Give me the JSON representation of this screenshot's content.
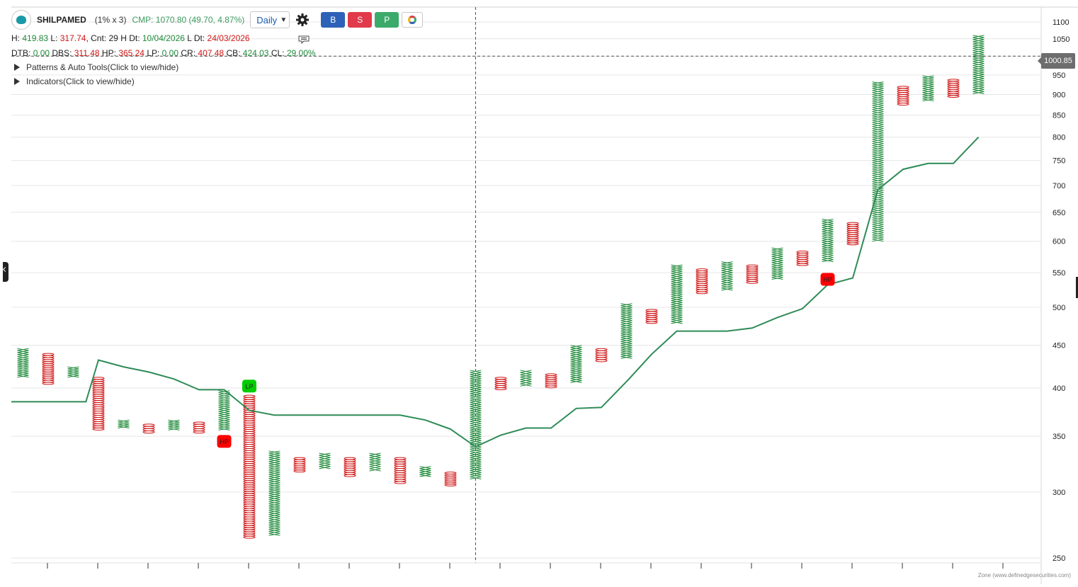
{
  "header": {
    "symbol": "SHILPAMED",
    "box_size": "(1% x 3)",
    "cmp": "CMP: 1070.80 (49.70, 4.87%)",
    "timeframe": "Daily",
    "buttons": {
      "buy": "B",
      "sell": "S",
      "p": "P"
    }
  },
  "stats1": {
    "h_lbl": "H:",
    "h": "419.83",
    "l_lbl": "L:",
    "l": "317.74",
    "cnt_lbl": ", Cnt:",
    "cnt": "29",
    "hdt_lbl": "H Dt:",
    "hdt": "10/04/2026",
    "ldt_lbl": "L Dt:",
    "ldt": "24/03/2026"
  },
  "stats2": {
    "dtb_lbl": "DTB:",
    "dtb": "0.00",
    "dbs_lbl": "DBS:",
    "dbs": "311.48",
    "hp_lbl": "HP:",
    "hp": "365.24",
    "lp_lbl": "LP:",
    "lp": "0.00",
    "cr_lbl": "CR:",
    "cr": "407.48",
    "cb_lbl": "CB:",
    "cb": "424.03",
    "cl_lbl": "CL:",
    "cl": "29.00%"
  },
  "panels": {
    "patterns": "Patterns & Auto Tools(Click to view/hide)",
    "indicators": "Indicators(Click to view/hide)"
  },
  "crosshair_price": "1000.85",
  "footer": "Zone (www.definedgesecurities.com)",
  "colors": {
    "x": "#1f8a3a",
    "o": "#d01616",
    "line": "#2e8b57",
    "grid": "#e6e6e6",
    "lp": "#00cc00",
    "hp": "#ff0000"
  },
  "chart_data": {
    "type": "point-and-figure",
    "y_scale": "log",
    "ylim": [
      250,
      1100
    ],
    "y_ticks": [
      250,
      300,
      350,
      400,
      450,
      500,
      550,
      600,
      650,
      700,
      750,
      800,
      850,
      900,
      950,
      1000,
      1050,
      1100
    ],
    "y_tick_labels": [
      "250",
      "300",
      "350",
      "400",
      "450",
      "500",
      "550",
      "600",
      "650",
      "700",
      "750",
      "800",
      "850",
      "900",
      "950",
      "",
      "1050",
      "1100"
    ],
    "columns": [
      {
        "type": "X",
        "low": 412,
        "high": 446
      },
      {
        "type": "O",
        "low": 404,
        "high": 440
      },
      {
        "type": "X",
        "low": 412,
        "high": 424
      },
      {
        "type": "O",
        "low": 356,
        "high": 412
      },
      {
        "type": "X",
        "low": 358,
        "high": 366
      },
      {
        "type": "O",
        "low": 353,
        "high": 362
      },
      {
        "type": "X",
        "low": 356,
        "high": 366
      },
      {
        "type": "O",
        "low": 353,
        "high": 364
      },
      {
        "type": "X",
        "low": 356,
        "high": 397
      },
      {
        "type": "O",
        "low": 264,
        "high": 392
      },
      {
        "type": "X",
        "low": 266,
        "high": 336
      },
      {
        "type": "O",
        "low": 317,
        "high": 330
      },
      {
        "type": "X",
        "low": 320,
        "high": 334
      },
      {
        "type": "O",
        "low": 313,
        "high": 330
      },
      {
        "type": "X",
        "low": 318,
        "high": 334
      },
      {
        "type": "O",
        "low": 307,
        "high": 330
      },
      {
        "type": "X",
        "low": 313,
        "high": 322
      },
      {
        "type": "O",
        "low": 305,
        "high": 317
      },
      {
        "type": "X",
        "low": 311,
        "high": 420
      },
      {
        "type": "O",
        "low": 398,
        "high": 412
      },
      {
        "type": "X",
        "low": 402,
        "high": 420
      },
      {
        "type": "O",
        "low": 400,
        "high": 416
      },
      {
        "type": "X",
        "low": 406,
        "high": 450
      },
      {
        "type": "O",
        "low": 430,
        "high": 446
      },
      {
        "type": "X",
        "low": 434,
        "high": 505
      },
      {
        "type": "O",
        "low": 478,
        "high": 497
      },
      {
        "type": "X",
        "low": 478,
        "high": 562
      },
      {
        "type": "O",
        "low": 519,
        "high": 556
      },
      {
        "type": "X",
        "low": 524,
        "high": 567
      },
      {
        "type": "O",
        "low": 534,
        "high": 562
      },
      {
        "type": "X",
        "low": 540,
        "high": 589
      },
      {
        "type": "O",
        "low": 561,
        "high": 584
      },
      {
        "type": "X",
        "low": 567,
        "high": 638
      },
      {
        "type": "O",
        "low": 594,
        "high": 632
      },
      {
        "type": "X",
        "low": 600,
        "high": 932
      },
      {
        "type": "O",
        "low": 874,
        "high": 921
      },
      {
        "type": "X",
        "low": 884,
        "high": 948
      },
      {
        "type": "O",
        "low": 893,
        "high": 939
      },
      {
        "type": "X",
        "low": 902,
        "high": 1060
      }
    ],
    "ema_line": [
      {
        "x": 0,
        "y": 385
      },
      {
        "x": 2.5,
        "y": 385
      },
      {
        "x": 3,
        "y": 432
      },
      {
        "x": 4,
        "y": 424
      },
      {
        "x": 5,
        "y": 418
      },
      {
        "x": 6,
        "y": 410
      },
      {
        "x": 7,
        "y": 398
      },
      {
        "x": 8,
        "y": 398
      },
      {
        "x": 9,
        "y": 376
      },
      {
        "x": 10,
        "y": 371
      },
      {
        "x": 11,
        "y": 371
      },
      {
        "x": 12,
        "y": 371
      },
      {
        "x": 13,
        "y": 371
      },
      {
        "x": 14,
        "y": 371
      },
      {
        "x": 15,
        "y": 371
      },
      {
        "x": 16,
        "y": 366
      },
      {
        "x": 17,
        "y": 357
      },
      {
        "x": 18,
        "y": 340
      },
      {
        "x": 19,
        "y": 351
      },
      {
        "x": 20,
        "y": 358
      },
      {
        "x": 21,
        "y": 358
      },
      {
        "x": 22,
        "y": 378
      },
      {
        "x": 23,
        "y": 379
      },
      {
        "x": 24,
        "y": 407
      },
      {
        "x": 25,
        "y": 439
      },
      {
        "x": 26,
        "y": 468
      },
      {
        "x": 27,
        "y": 468
      },
      {
        "x": 28,
        "y": 468
      },
      {
        "x": 29,
        "y": 472
      },
      {
        "x": 30,
        "y": 486
      },
      {
        "x": 31,
        "y": 498
      },
      {
        "x": 32,
        "y": 532
      },
      {
        "x": 33,
        "y": 542
      },
      {
        "x": 34,
        "y": 692
      },
      {
        "x": 35,
        "y": 732
      },
      {
        "x": 36,
        "y": 744
      },
      {
        "x": 37,
        "y": 744
      },
      {
        "x": 38,
        "y": 800
      }
    ],
    "markers": [
      {
        "label": "LP",
        "column": 9,
        "price": 402,
        "color": "#00cc00"
      },
      {
        "label": "HP",
        "column": 8,
        "price": 345,
        "color": "#ff0000"
      },
      {
        "label": "HP",
        "column": 32,
        "price": 540,
        "color": "#ff0000"
      }
    ],
    "crosshair": {
      "column": 18,
      "price": 1000.85
    }
  }
}
